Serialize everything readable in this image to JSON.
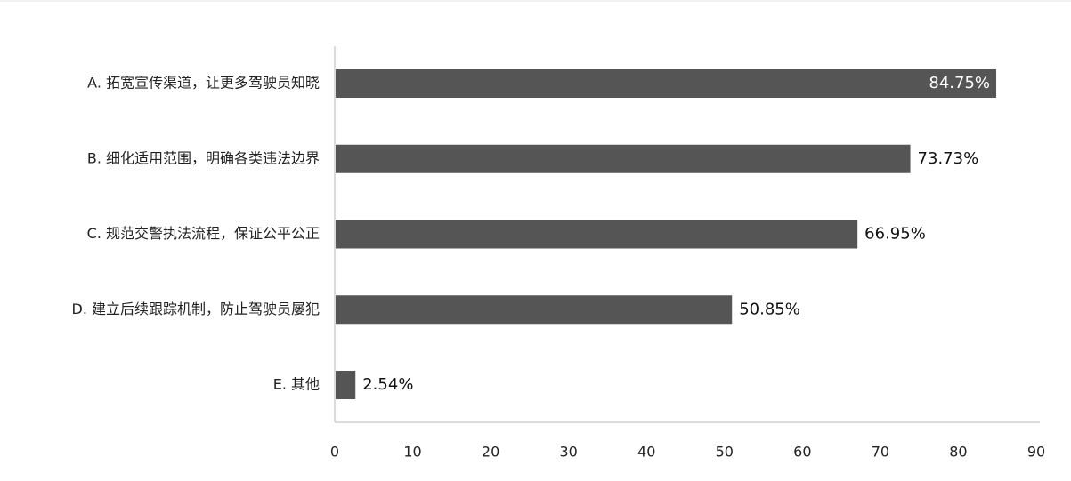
{
  "chart_data": {
    "type": "bar",
    "orientation": "horizontal",
    "categories": [
      "A. 拓宽宣传渠道，让更多驾驶员知晓",
      "B. 细化适用范围，明确各类违法边界",
      "C. 规范交警执法流程，保证公平公正",
      "D. 建立后续跟踪机制，防止驾驶员屡犯",
      "E. 其他"
    ],
    "values": [
      84.75,
      73.73,
      66.95,
      50.85,
      2.54
    ],
    "value_labels": [
      "84.75%",
      "73.73%",
      "66.95%",
      "50.85%",
      "2.54%"
    ],
    "xlim": [
      0,
      90
    ],
    "x_ticks": [
      0,
      10,
      20,
      30,
      40,
      50,
      60,
      70,
      80,
      90
    ],
    "title": "",
    "xlabel": "",
    "ylabel": "",
    "grid": false,
    "legend": "none",
    "bar_color": "#555555",
    "axis_color": "#cfcfcf"
  }
}
